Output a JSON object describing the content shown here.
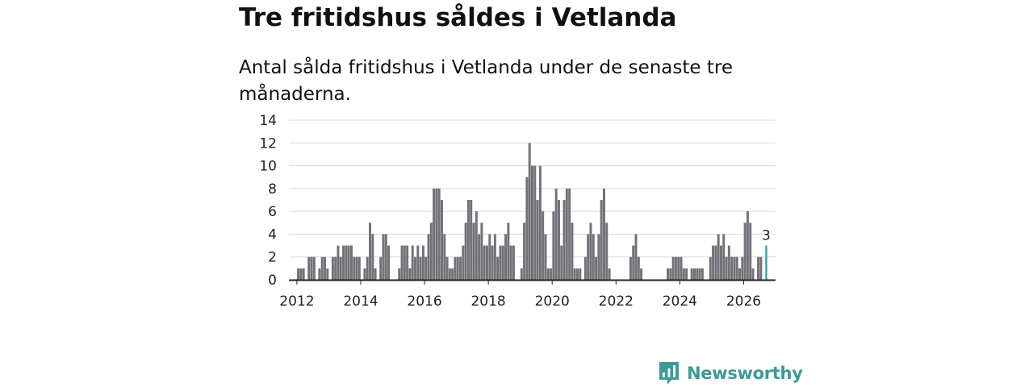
{
  "title": "Tre fritidshus såldes i Vetlanda",
  "subtitle": "Antal sålda fritidshus i Vetlanda under de senaste tre månaderna.",
  "brand": {
    "name": "Newsworthy",
    "color": "#3d9a96",
    "icon": "newsworthy-logo-icon"
  },
  "colors": {
    "bar": "#737278",
    "highlight": "#2ba8a3",
    "grid": "#d8d8d8",
    "axis": "#222222"
  },
  "chart_data": {
    "type": "bar",
    "title": "Tre fritidshus såldes i Vetlanda",
    "xlabel": "",
    "ylabel": "",
    "ylim": [
      0,
      14
    ],
    "yticks": [
      "0",
      "2",
      "4",
      "6",
      "8",
      "10",
      "12",
      "14"
    ],
    "xticks": [
      "2012",
      "2014",
      "2016",
      "2018",
      "2020",
      "2022",
      "2024",
      "2026"
    ],
    "x_start": "2011-10",
    "x_end": "2027-01",
    "grid": true,
    "series": [
      {
        "name": "Antal sålda fritidshus",
        "start": "2012-01",
        "values": [
          1,
          1,
          1,
          0,
          2,
          2,
          2,
          0,
          1,
          2,
          2,
          1,
          0,
          2,
          2,
          3,
          2,
          3,
          3,
          3,
          3,
          2,
          2,
          2,
          0,
          1,
          2,
          5,
          4,
          1,
          0,
          2,
          4,
          4,
          3,
          0,
          0,
          0,
          1,
          3,
          3,
          3,
          1,
          3,
          2,
          3,
          2,
          3,
          2,
          4,
          5,
          8,
          8,
          8,
          7,
          4,
          2,
          1,
          1,
          2,
          2,
          2,
          3,
          5,
          7,
          7,
          5,
          6,
          4,
          5,
          3,
          3,
          4,
          3,
          4,
          2,
          3,
          3,
          4,
          5,
          3,
          3,
          0,
          0,
          1,
          5,
          9,
          12,
          10,
          10,
          7,
          10,
          6,
          4,
          1,
          1,
          6,
          8,
          7,
          3,
          7,
          8,
          8,
          5,
          1,
          1,
          1,
          0,
          2,
          4,
          5,
          4,
          2,
          4,
          7,
          8,
          5,
          1,
          0,
          0,
          0,
          0,
          0,
          0,
          0,
          2,
          3,
          4,
          2,
          1,
          0,
          0,
          0,
          0,
          0,
          0,
          0,
          0,
          0,
          1,
          1,
          2,
          2,
          2,
          2,
          1,
          1,
          0,
          1,
          1,
          1,
          1,
          1,
          0,
          0,
          2,
          3,
          3,
          4,
          3,
          4,
          2,
          3,
          2,
          2,
          2,
          1,
          2,
          5,
          6,
          5,
          1,
          0,
          2,
          2,
          0,
          3
        ],
        "highlight_last": true,
        "last_label": "3"
      }
    ]
  }
}
